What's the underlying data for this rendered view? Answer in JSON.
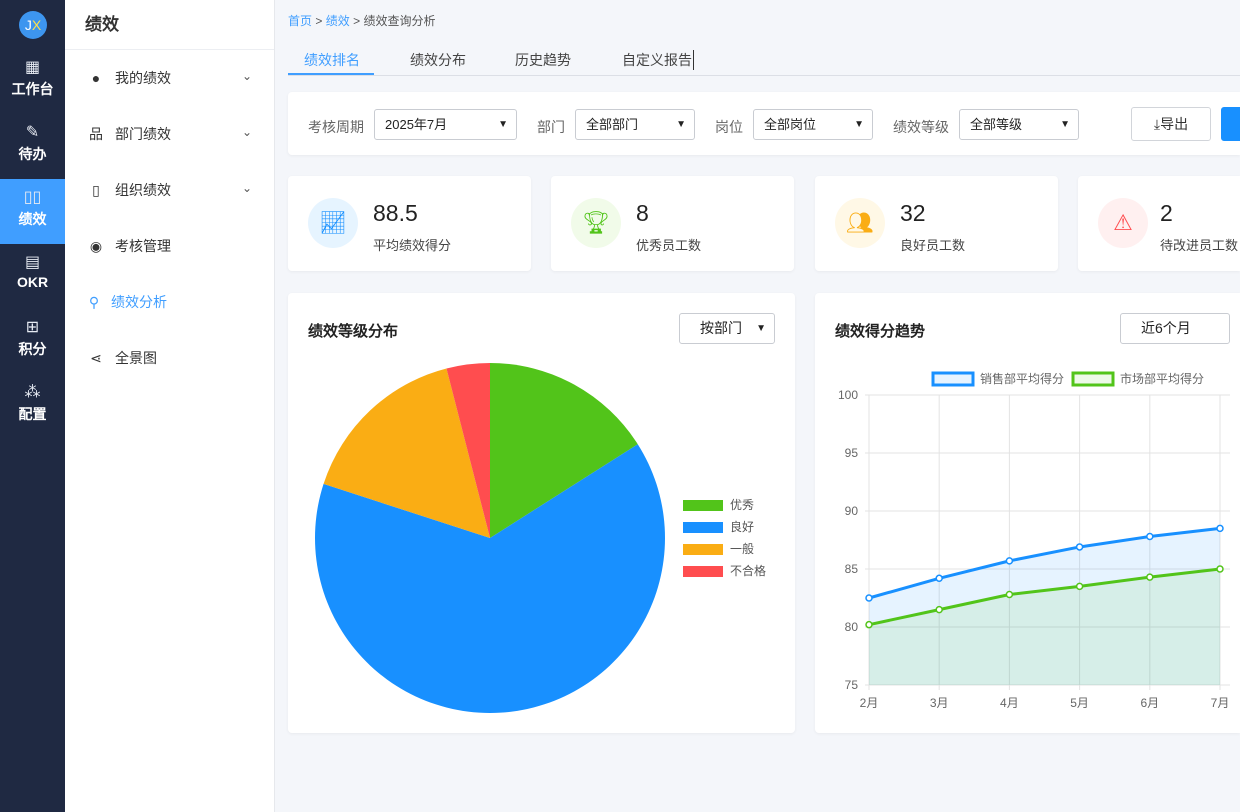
{
  "rail": {
    "avatar": "JX",
    "items": [
      {
        "label": "工作台",
        "icon": "grid-icon"
      },
      {
        "label": "待办",
        "icon": "edit-icon"
      },
      {
        "label": "绩效",
        "icon": "book-icon",
        "active": true
      },
      {
        "label": "OKR",
        "icon": "archive-icon"
      },
      {
        "label": "积分",
        "icon": "gift-icon"
      },
      {
        "label": "配置",
        "icon": "org-icon"
      }
    ]
  },
  "sidebar": {
    "title": "绩效",
    "items": [
      {
        "label": "我的绩效",
        "icon": "user-icon"
      },
      {
        "label": "部门绩效",
        "icon": "sitemap-icon"
      },
      {
        "label": "组织绩效",
        "icon": "notebook-icon"
      },
      {
        "label": "考核管理",
        "icon": "lifebuoy-icon"
      },
      {
        "label": "绩效分析",
        "icon": "search-icon",
        "active": true
      },
      {
        "label": "全景图",
        "icon": "share-icon"
      }
    ]
  },
  "breadcrumb": {
    "home": "首页",
    "section": "绩效",
    "current": "绩效查询分析",
    "sep": ">"
  },
  "tabs": [
    "绩效排名",
    "绩效分布",
    "历史趋势",
    "自定义报告"
  ],
  "filters": {
    "period_label": "考核周期",
    "period": "2025年7月",
    "dept_label": "部门",
    "dept": "全部部门",
    "post_label": "岗位",
    "post": "全部岗位",
    "grade_label": "绩效等级",
    "grade": "全部等级",
    "export": "导出"
  },
  "stats": [
    {
      "value": "88.5",
      "label": "平均绩效得分",
      "color": "#1890ff",
      "bg": "#e6f4ff"
    },
    {
      "value": "8",
      "label": "优秀员工数",
      "color": "#52c41a",
      "bg": "#f1fbe9"
    },
    {
      "value": "32",
      "label": "良好员工数",
      "color": "#faad14",
      "bg": "#fff8e6"
    },
    {
      "value": "2",
      "label": "待改进员工数",
      "color": "#ff4d4f",
      "bg": "#fff0f0"
    }
  ],
  "pie_card": {
    "title": "绩效等级分布",
    "select": "按部门"
  },
  "line_card": {
    "title": "绩效得分趋势",
    "select": "近6个月"
  },
  "chart_data": [
    {
      "type": "pie",
      "categories": [
        "优秀",
        "良好",
        "一般",
        "不合格"
      ],
      "values": [
        8,
        32,
        8,
        2
      ],
      "colors": [
        "#52c41a",
        "#1890ff",
        "#faad14",
        "#ff4d4f"
      ],
      "legend": "right"
    },
    {
      "type": "line",
      "categories": [
        "2月",
        "3月",
        "4月",
        "5月",
        "6月",
        "7月"
      ],
      "ylim": [
        75,
        100
      ],
      "yticks": [
        75,
        80,
        85,
        90,
        95,
        100
      ],
      "grid": true,
      "legend": "top",
      "series": [
        {
          "name": "销售部平均得分",
          "values": [
            82.5,
            84.2,
            85.7,
            86.9,
            87.8,
            88.5
          ],
          "color": "#1890ff"
        },
        {
          "name": "市场部平均得分",
          "values": [
            80.2,
            81.5,
            82.8,
            83.5,
            84.3,
            85.0
          ],
          "color": "#52c41a"
        }
      ]
    }
  ]
}
